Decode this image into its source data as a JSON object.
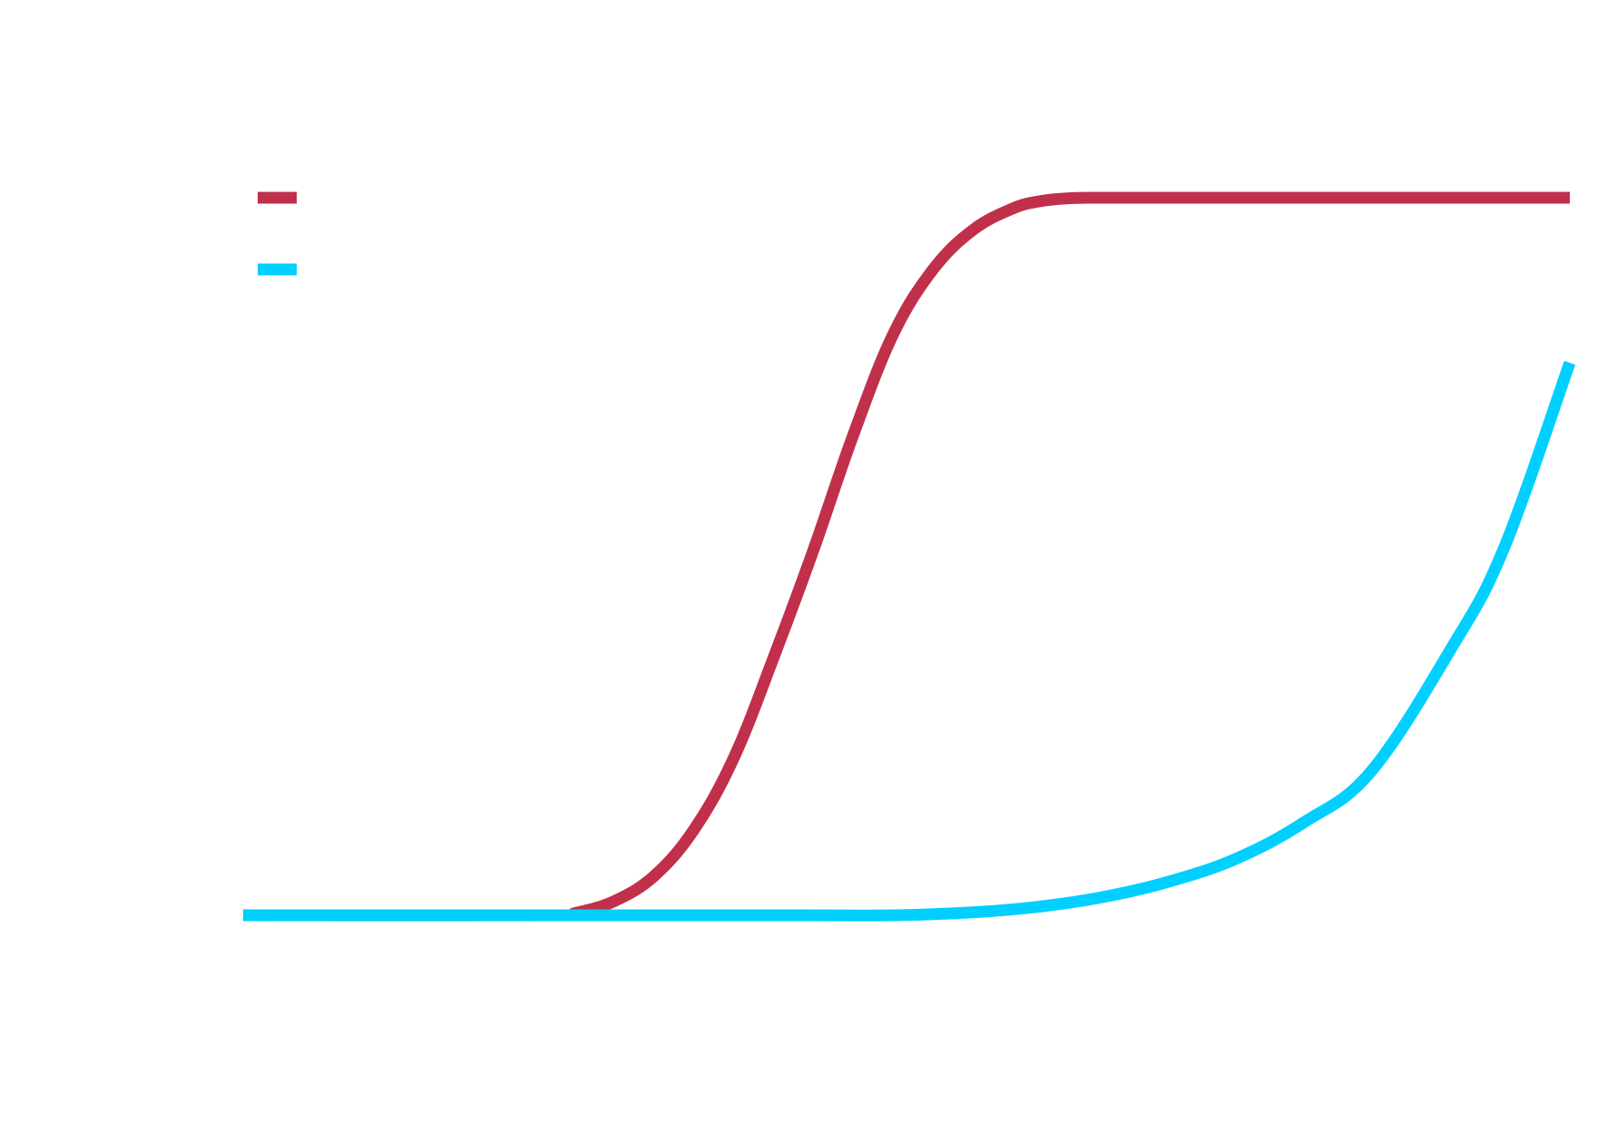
{
  "chart_data": {
    "type": "line",
    "title": "",
    "xlabel": "",
    "ylabel": "",
    "xlim": [
      0,
      100
    ],
    "ylim": [
      0,
      100
    ],
    "grid": false,
    "legend_placement": "top-left",
    "series": [
      {
        "color": "#C0304A",
        "x": [
          0,
          23.3,
          25,
          28,
          31,
          34,
          37,
          40,
          43,
          46,
          49,
          52,
          55,
          58,
          60,
          62,
          64,
          66,
          67.5,
          70,
          75,
          80,
          85,
          90,
          95,
          100
        ],
        "y": [
          0,
          0,
          0.3,
          2,
          5.5,
          12,
          22,
          36,
          51,
          67,
          81,
          90,
          95.5,
          98.5,
          99.5,
          99.9,
          100,
          100,
          100,
          100,
          100,
          100,
          100,
          100,
          100,
          100
        ]
      },
      {
        "color": "#00CFFF",
        "x": [
          0,
          20,
          40,
          49,
          55,
          60,
          65,
          70,
          75,
          80,
          85,
          91,
          95,
          100
        ],
        "y": [
          0,
          0,
          0,
          0,
          0.4,
          1.2,
          2.6,
          4.8,
          8,
          13,
          20,
          37,
          51,
          77
        ]
      }
    ]
  }
}
